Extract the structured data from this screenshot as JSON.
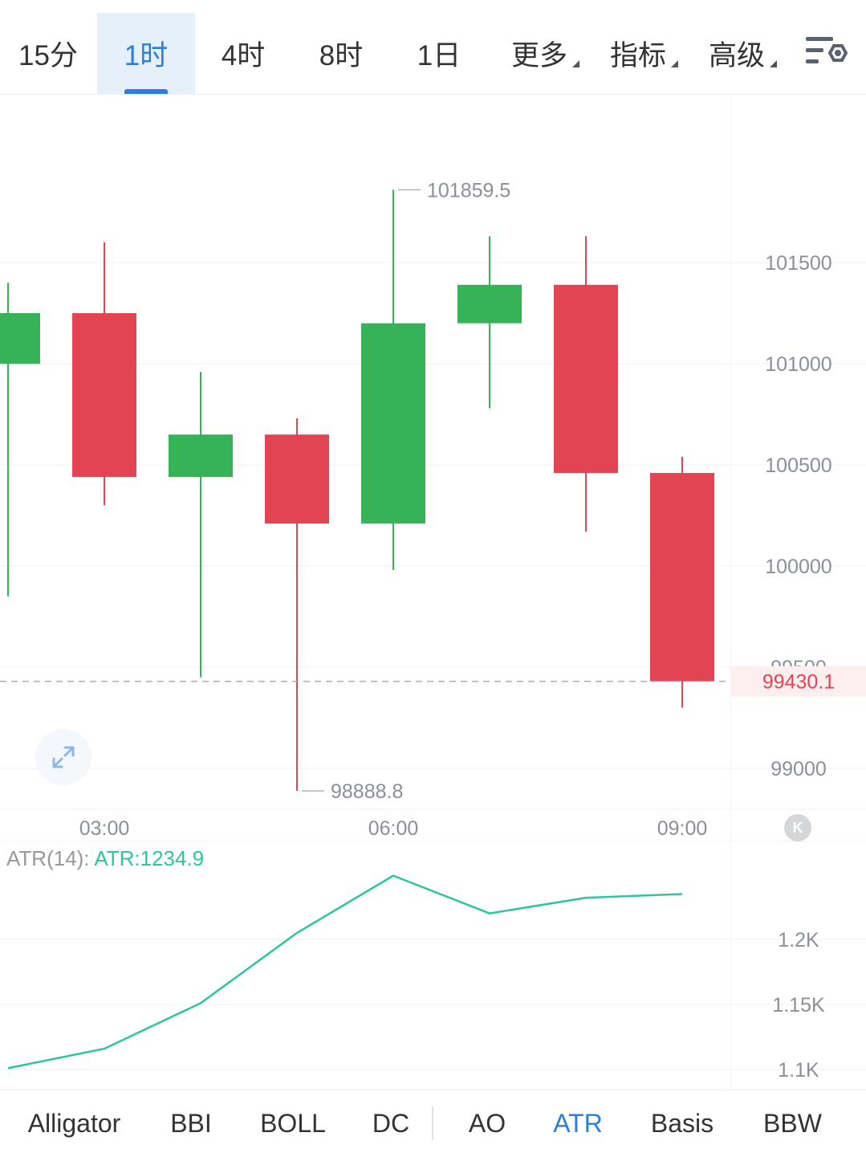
{
  "toolbar": {
    "tabs": [
      {
        "label": "15分",
        "active": false
      },
      {
        "label": "1时",
        "active": true
      },
      {
        "label": "4时",
        "active": false
      },
      {
        "label": "8时",
        "active": false
      },
      {
        "label": "1日",
        "active": false
      }
    ],
    "dropdowns": [
      {
        "label": "更多"
      },
      {
        "label": "指标"
      },
      {
        "label": "高级"
      }
    ],
    "settings_icon": "chart-settings-icon"
  },
  "colors": {
    "up": "#36b357",
    "down": "#e34451",
    "accent": "#2b7fd9",
    "atr_line": "#2ec4a0",
    "last_price": "#e34451"
  },
  "chart_data": [
    {
      "type": "candlestick",
      "timeframe": "1时",
      "x_ticks": [
        "03:00",
        "06:00",
        "09:00"
      ],
      "y_ticks": [
        99000,
        99500,
        100000,
        100500,
        101000,
        101500
      ],
      "y_tick_labels": [
        "99000",
        "99500",
        "100000",
        "100500",
        "101000",
        "101500"
      ],
      "ylim": [
        98600,
        102150
      ],
      "candles": [
        {
          "open": 101000,
          "close": 101250,
          "high": 101400,
          "low": 99850
        },
        {
          "open": 101250,
          "close": 100440,
          "high": 101600,
          "low": 100300
        },
        {
          "open": 100440,
          "close": 100650,
          "high": 100960,
          "low": 99450
        },
        {
          "open": 100650,
          "close": 100210,
          "high": 100730,
          "low": 98888.8
        },
        {
          "open": 100210,
          "close": 101200,
          "high": 101859.5,
          "low": 99980
        },
        {
          "open": 101200,
          "close": 101390,
          "high": 101630,
          "low": 100780
        },
        {
          "open": 101390,
          "close": 100460,
          "high": 101630,
          "low": 100170
        },
        {
          "open": 100460,
          "close": 99430.1,
          "high": 100540,
          "low": 99300
        }
      ],
      "high_marker": "101859.5",
      "low_marker": "98888.8",
      "last_price": 99430.1,
      "last_price_label": "99430.1",
      "grid": true
    },
    {
      "type": "line",
      "title": "ATR(14):",
      "value_label": "ATR:1234.9",
      "y_ticks": [
        1100,
        1150,
        1200
      ],
      "y_tick_labels": [
        "1.1K",
        "1.15K",
        "1.2K"
      ],
      "ylim": [
        1090,
        1275
      ],
      "series": [
        {
          "values": [
            1101,
            1116,
            1151,
            1205,
            1249,
            1220,
            1232,
            1234.9
          ]
        }
      ],
      "grid": true
    }
  ],
  "indicators": [
    {
      "label": "Alligator",
      "active": false
    },
    {
      "label": "BBI",
      "active": false
    },
    {
      "label": "BOLL",
      "active": false
    },
    {
      "label": "DC",
      "active": false
    },
    {
      "label": "AO",
      "active": false
    },
    {
      "label": "ATR",
      "active": true
    },
    {
      "label": "Basis",
      "active": false
    },
    {
      "label": "BBW",
      "active": false
    }
  ],
  "expand_icon": "expand-icon",
  "k_badge": "K"
}
